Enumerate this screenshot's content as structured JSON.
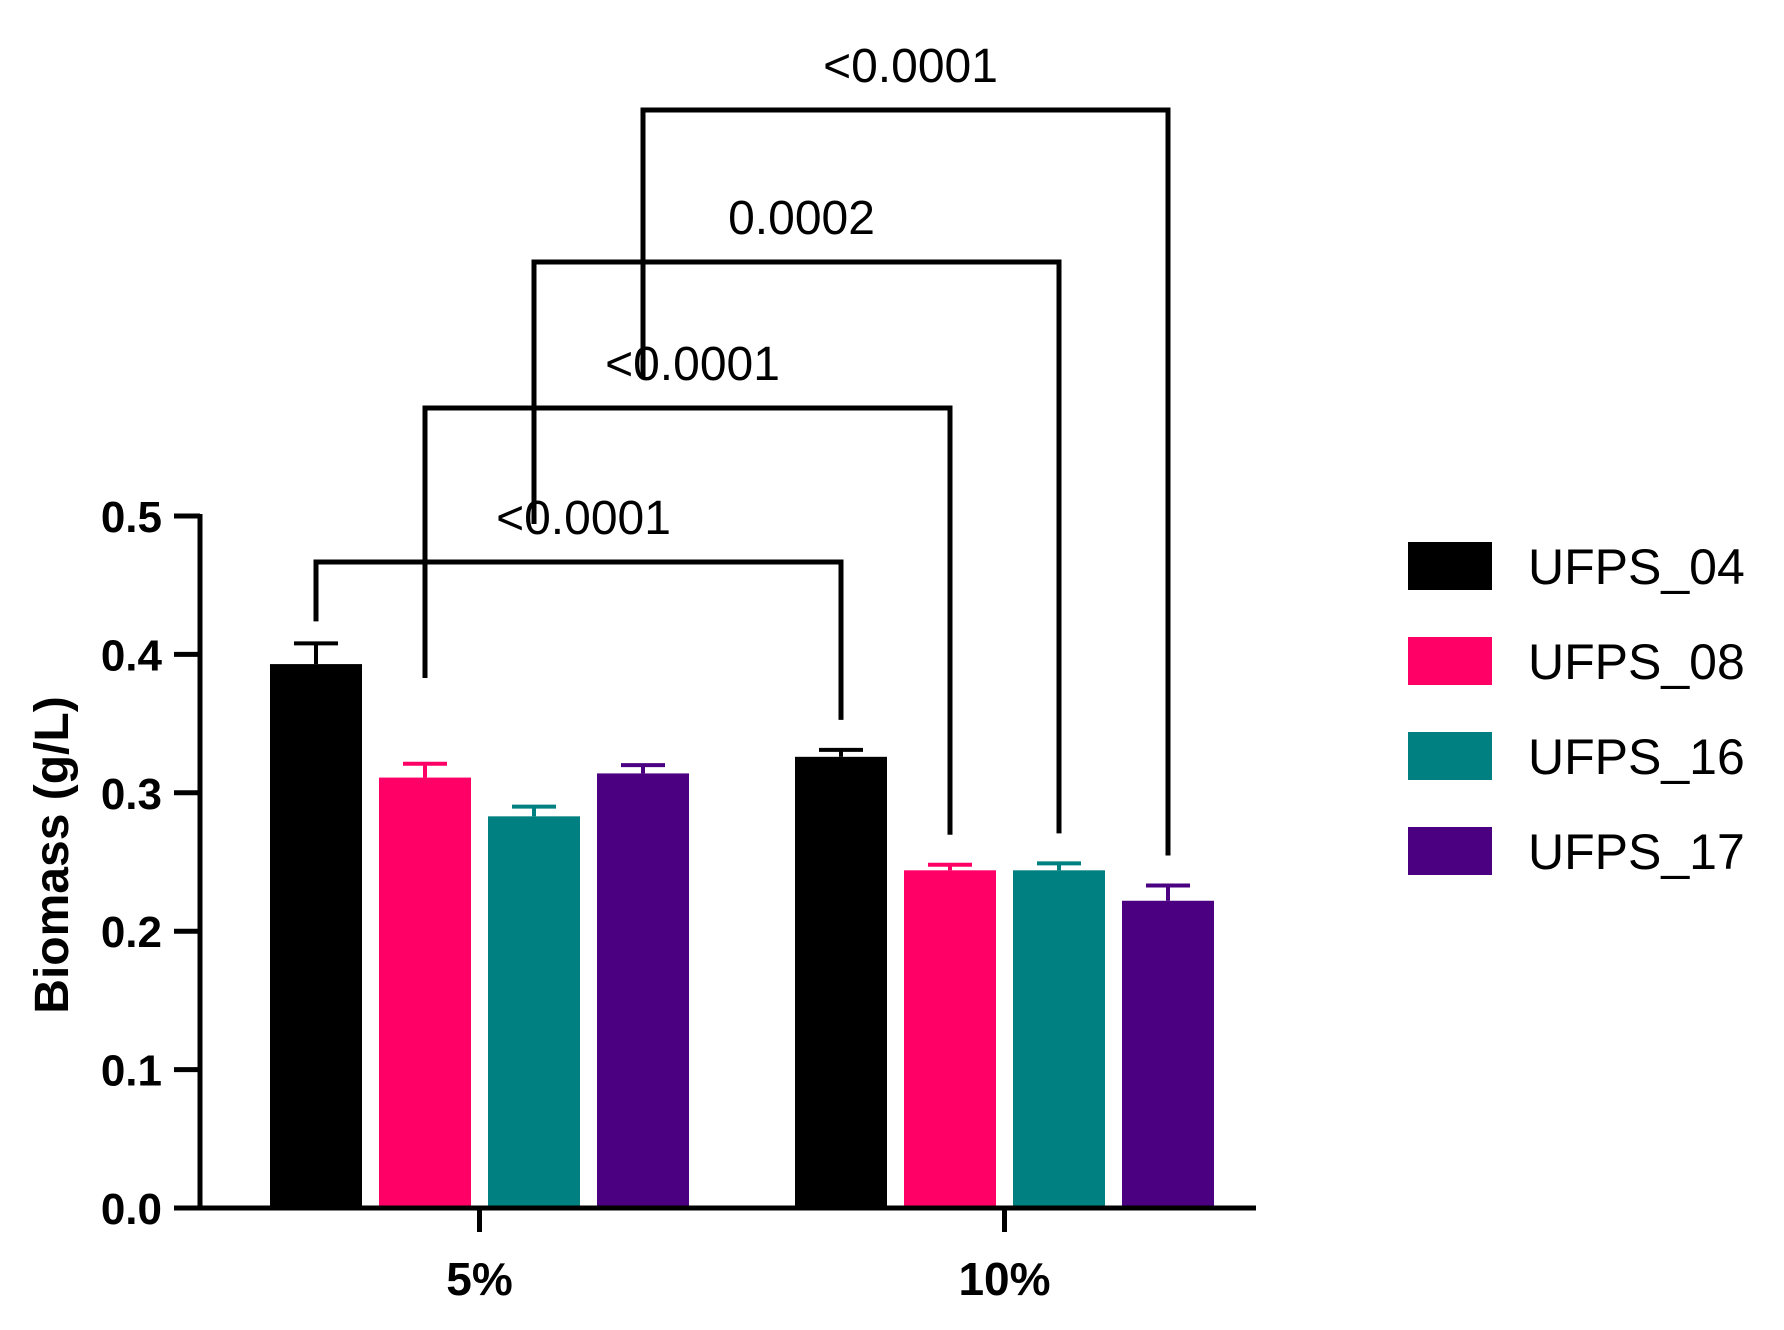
{
  "chart_data": {
    "type": "bar",
    "title": "",
    "xlabel": "",
    "ylabel": "Biomass (g/L)",
    "ylim": [
      0,
      0.5
    ],
    "yticks": [
      "0.0",
      "0.1",
      "0.2",
      "0.3",
      "0.4",
      "0.5"
    ],
    "categories": [
      "5%",
      "10%"
    ],
    "legend_position": "right",
    "grid": false,
    "series": [
      {
        "name": "UFPS_04",
        "color": "#000000",
        "values": [
          0.393,
          0.326
        ],
        "errors": [
          0.015,
          0.005
        ]
      },
      {
        "name": "UFPS_08",
        "color": "#ff0066",
        "values": [
          0.311,
          0.244
        ],
        "errors": [
          0.01,
          0.004
        ]
      },
      {
        "name": "UFPS_16",
        "color": "#008080",
        "values": [
          0.283,
          0.244
        ],
        "errors": [
          0.007,
          0.005
        ]
      },
      {
        "name": "UFPS_17",
        "color": "#4b0082",
        "values": [
          0.314,
          0.222
        ],
        "errors": [
          0.006,
          0.011
        ]
      }
    ],
    "comparisons": [
      {
        "series": "UFPS_04",
        "label": "<0.0001"
      },
      {
        "series": "UFPS_08",
        "label": "<0.0001"
      },
      {
        "series": "UFPS_16",
        "label": "0.0002"
      },
      {
        "series": "UFPS_17",
        "label": "<0.0001"
      }
    ]
  }
}
